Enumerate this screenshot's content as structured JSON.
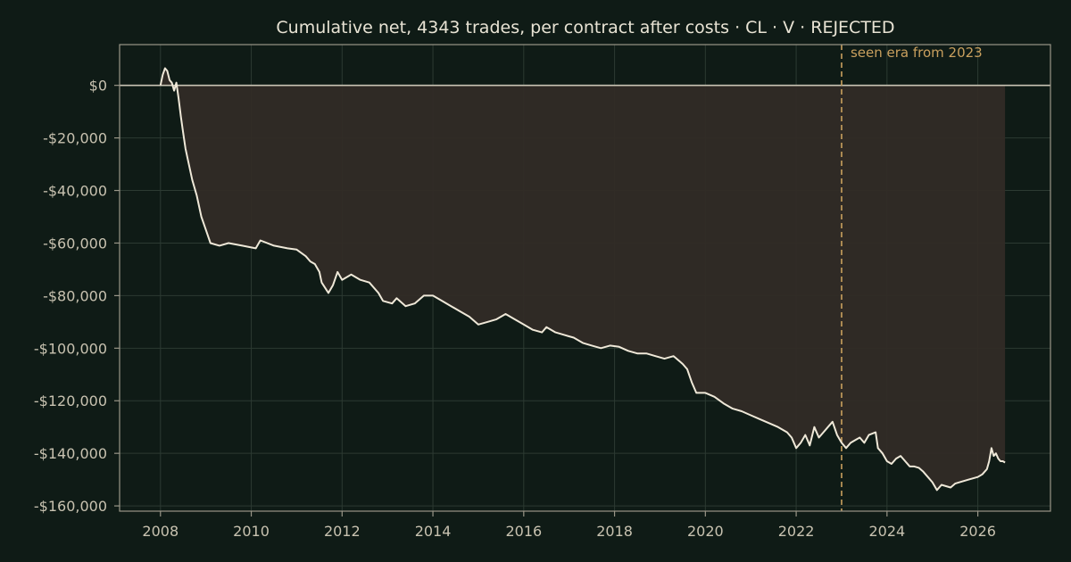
{
  "chart_data": {
    "type": "line",
    "title": "Cumulative net, 4343 trades, per contract after costs  ·  CL · V · REJECTED",
    "xlabel": "",
    "ylabel": "",
    "xlim": [
      2007.1,
      2027.6
    ],
    "ylim": [
      -162000,
      15500
    ],
    "x_ticks": [
      2008,
      2010,
      2012,
      2014,
      2016,
      2018,
      2020,
      2022,
      2024,
      2026
    ],
    "x_tick_labels": [
      "2008",
      "2010",
      "2012",
      "2014",
      "2016",
      "2018",
      "2020",
      "2022",
      "2024",
      "2026"
    ],
    "y_ticks": [
      0,
      -20000,
      -40000,
      -60000,
      -80000,
      -100000,
      -120000,
      -140000,
      -160000
    ],
    "y_tick_labels": [
      "$0",
      "-$20,000",
      "-$40,000",
      "-$60,000",
      "-$80,000",
      "-$100,000",
      "-$120,000",
      "-$140,000",
      "-$160,000"
    ],
    "grid": true,
    "fill_to": 0,
    "reference_line_y": 0,
    "annotation": {
      "x": 2023.0,
      "text": "seen era from 2023"
    },
    "series": [
      {
        "x": [
          2008.0,
          2008.05,
          2008.1,
          2008.15,
          2008.2,
          2008.25,
          2008.3,
          2008.35,
          2008.4,
          2008.45,
          2008.5,
          2008.55,
          2008.6,
          2008.7,
          2008.8,
          2008.9,
          2009.0,
          2009.1,
          2009.3,
          2009.5,
          2009.8,
          2010.1,
          2010.2,
          2010.5,
          2010.8,
          2011.0,
          2011.2,
          2011.3,
          2011.4,
          2011.5,
          2011.55,
          2011.7,
          2011.8,
          2011.9,
          2012.0,
          2012.2,
          2012.4,
          2012.6,
          2012.8,
          2012.9,
          2013.1,
          2013.2,
          2013.4,
          2013.6,
          2013.8,
          2014.0,
          2014.2,
          2014.4,
          2014.6,
          2014.8,
          2015.0,
          2015.2,
          2015.4,
          2015.6,
          2015.8,
          2016.0,
          2016.2,
          2016.4,
          2016.5,
          2016.7,
          2016.9,
          2017.1,
          2017.3,
          2017.5,
          2017.7,
          2017.9,
          2018.1,
          2018.3,
          2018.5,
          2018.7,
          2018.9,
          2019.1,
          2019.3,
          2019.5,
          2019.6,
          2019.7,
          2019.8,
          2020.0,
          2020.2,
          2020.4,
          2020.6,
          2020.8,
          2021.0,
          2021.2,
          2021.4,
          2021.6,
          2021.8,
          2021.9,
          2022.0,
          2022.1,
          2022.2,
          2022.3,
          2022.4,
          2022.5,
          2022.6,
          2022.7,
          2022.8,
          2022.9,
          2023.0,
          2023.1,
          2023.2,
          2023.3,
          2023.4,
          2023.5,
          2023.6,
          2023.75,
          2023.8,
          2023.9,
          2024.0,
          2024.1,
          2024.2,
          2024.3,
          2024.4,
          2024.5,
          2024.6,
          2024.7,
          2024.8,
          2024.9,
          2025.0,
          2025.1,
          2025.2,
          2025.3,
          2025.4,
          2025.5,
          2025.6,
          2025.8,
          2026.0,
          2026.1,
          2026.2,
          2026.25,
          2026.3,
          2026.35,
          2026.4,
          2026.45,
          2026.5,
          2026.55,
          2026.6
        ],
        "values": [
          0,
          4000,
          6500,
          5500,
          2000,
          1000,
          -2000,
          1000,
          -5000,
          -12000,
          -18000,
          -24000,
          -28000,
          -36000,
          -42000,
          -50000,
          -55000,
          -60000,
          -61000,
          -60000,
          -61000,
          -62000,
          -59000,
          -61000,
          -62000,
          -62500,
          -65000,
          -67000,
          -68000,
          -71000,
          -75000,
          -79000,
          -76000,
          -71000,
          -74000,
          -72000,
          -74000,
          -75000,
          -79000,
          -82000,
          -83000,
          -81000,
          -84000,
          -83000,
          -80000,
          -80000,
          -82000,
          -84000,
          -86000,
          -88000,
          -91000,
          -90000,
          -89000,
          -87000,
          -89000,
          -91000,
          -93000,
          -94000,
          -92000,
          -94000,
          -95000,
          -96000,
          -98000,
          -99000,
          -100000,
          -99000,
          -99500,
          -101000,
          -102000,
          -102000,
          -103000,
          -104000,
          -103000,
          -106000,
          -108000,
          -113000,
          -117000,
          -117000,
          -118500,
          -121000,
          -123000,
          -124000,
          -125500,
          -127000,
          -128500,
          -130000,
          -132000,
          -134000,
          -138000,
          -136000,
          -133000,
          -137000,
          -130000,
          -134000,
          -132000,
          -130000,
          -128000,
          -133000,
          -136000,
          -138000,
          -136000,
          -135000,
          -134000,
          -136000,
          -133000,
          -132000,
          -138000,
          -140000,
          -143000,
          -144000,
          -142000,
          -141000,
          -143000,
          -145000,
          -145000,
          -145500,
          -147000,
          -149000,
          -151000,
          -154000,
          -152000,
          -152500,
          -153000,
          -151500,
          -151000,
          -150000,
          -149000,
          -148000,
          -146000,
          -143000,
          -138000,
          -141000,
          -140000,
          -142000,
          -143000,
          -143000,
          -143500
        ]
      }
    ]
  }
}
